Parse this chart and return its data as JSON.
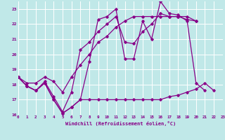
{
  "xlabel": "Windchill (Refroidissement éolien,°C)",
  "xlim": [
    0,
    23
  ],
  "ylim": [
    16,
    23.5
  ],
  "yticks": [
    16,
    17,
    18,
    19,
    20,
    21,
    22,
    23
  ],
  "xticks": [
    0,
    1,
    2,
    3,
    4,
    5,
    6,
    7,
    8,
    9,
    10,
    11,
    12,
    13,
    14,
    15,
    16,
    17,
    18,
    19,
    20,
    21,
    22,
    23
  ],
  "bg_color": "#c0e8e8",
  "grid_color": "#ffffff",
  "line_color": "#880088",
  "series1_x": [
    0,
    1,
    2,
    3,
    4,
    5,
    6,
    7,
    8,
    9,
    10,
    11,
    12,
    13,
    14,
    15,
    16,
    17,
    18,
    19,
    20,
    21,
    22
  ],
  "series1_y": [
    18.5,
    17.9,
    17.6,
    18.1,
    17.0,
    16.1,
    16.5,
    17.0,
    17.0,
    17.0,
    17.0,
    17.0,
    17.0,
    17.0,
    17.0,
    17.0,
    17.0,
    17.2,
    17.3,
    17.5,
    17.7,
    18.1,
    17.6
  ],
  "series2_x": [
    0,
    1,
    2,
    3,
    4,
    5,
    6,
    7,
    8,
    9,
    10,
    11,
    12,
    13,
    14,
    15,
    16,
    17,
    18,
    19,
    20,
    21
  ],
  "series2_y": [
    18.5,
    17.9,
    17.6,
    18.1,
    17.0,
    16.1,
    16.5,
    17.0,
    19.5,
    22.3,
    22.5,
    23.0,
    19.7,
    19.7,
    22.2,
    21.0,
    23.5,
    22.7,
    22.6,
    22.2,
    18.1,
    17.6
  ],
  "series3_x": [
    0,
    1,
    2,
    3,
    4,
    5,
    6,
    7,
    8,
    9,
    10,
    11,
    12,
    13,
    14,
    15,
    16,
    17,
    18,
    19,
    20
  ],
  "series3_y": [
    18.5,
    17.9,
    17.6,
    18.2,
    17.2,
    16.2,
    17.5,
    20.3,
    20.8,
    21.5,
    22.0,
    22.5,
    20.8,
    20.7,
    21.5,
    22.0,
    22.7,
    22.5,
    22.5,
    22.3,
    22.2
  ],
  "series4_x": [
    0,
    1,
    2,
    3,
    4,
    5,
    6,
    7,
    8,
    9,
    10,
    11,
    12,
    13,
    14,
    15,
    16,
    17,
    18,
    19,
    20
  ],
  "series4_y": [
    18.5,
    18.1,
    18.1,
    18.5,
    18.2,
    17.5,
    18.5,
    19.3,
    20.0,
    20.8,
    21.2,
    21.8,
    22.2,
    22.5,
    22.5,
    22.5,
    22.5,
    22.5,
    22.5,
    22.5,
    22.2
  ]
}
